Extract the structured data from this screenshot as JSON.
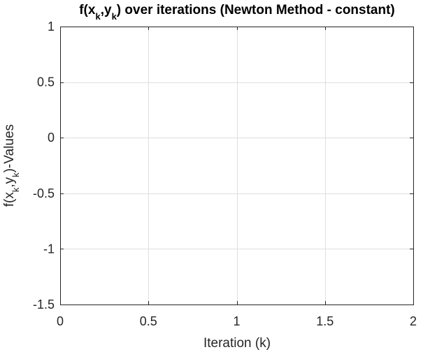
{
  "chart_data": {
    "type": "line",
    "title": {
      "segments": [
        {
          "text": "f(x",
          "sub": false
        },
        {
          "text": "k",
          "sub": true
        },
        {
          "text": ",y",
          "sub": false
        },
        {
          "text": "k",
          "sub": true
        },
        {
          "text": ") over iterations (Newton Method - constant)",
          "sub": false
        }
      ]
    },
    "xlabel": "Iteration (k)",
    "ylabel": {
      "segments": [
        {
          "text": "f(x",
          "sub": false
        },
        {
          "text": "k",
          "sub": true
        },
        {
          "text": ",y",
          "sub": false
        },
        {
          "text": "k",
          "sub": true
        },
        {
          "text": ")-Values",
          "sub": false
        }
      ]
    },
    "xlim": [
      0,
      2
    ],
    "ylim": [
      -1.5,
      1
    ],
    "xticks": [
      0,
      0.5,
      1,
      1.5,
      2
    ],
    "xtick_labels": [
      "0",
      "0.5",
      "1",
      "1.5",
      "2"
    ],
    "yticks": [
      -1.5,
      -1,
      -0.5,
      0,
      0.5,
      1
    ],
    "ytick_labels": [
      "-1.5",
      "-1",
      "-0.5",
      "0",
      "0.5",
      "1"
    ],
    "grid": true,
    "series": [],
    "colors": {
      "axis": "#262626",
      "grid": "#dfdfdf",
      "background": "#ffffff"
    }
  }
}
